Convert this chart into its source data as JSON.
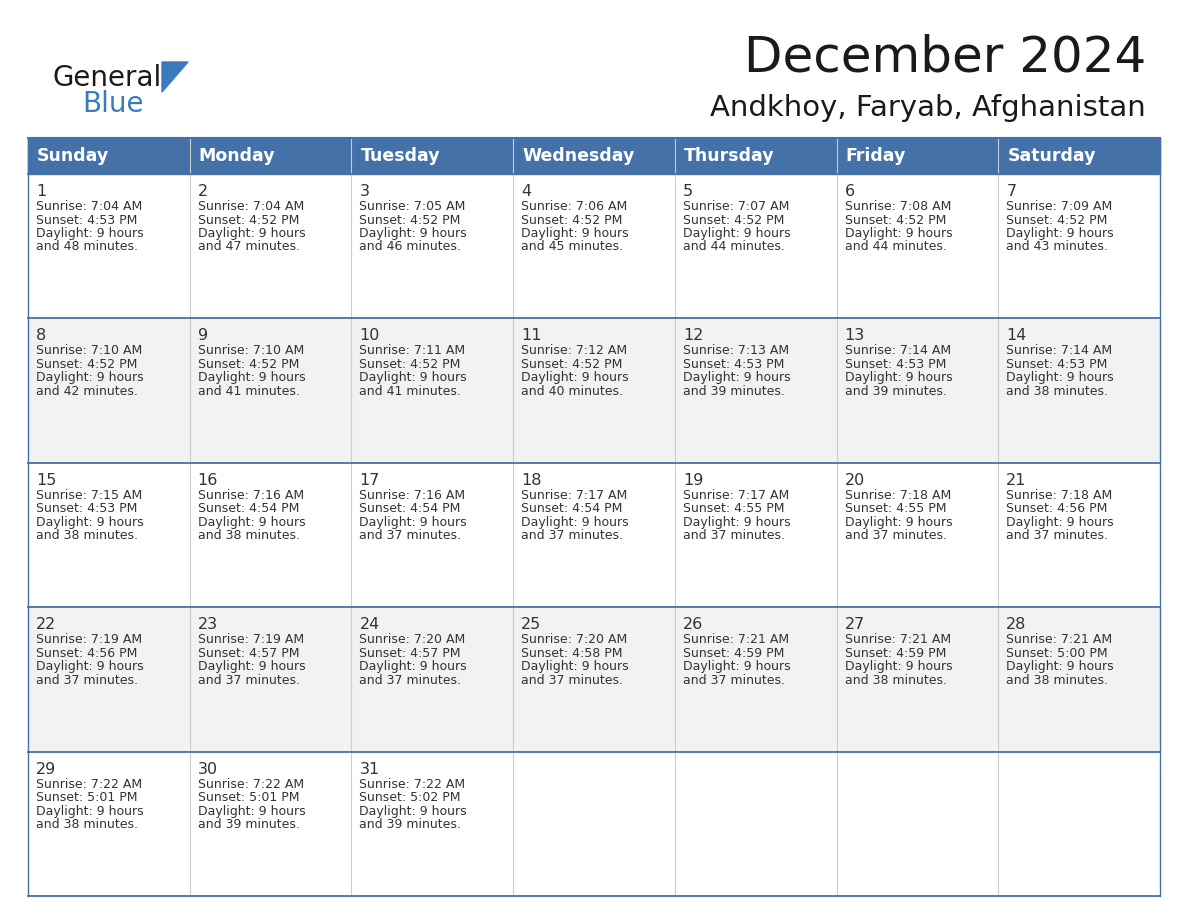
{
  "title": "December 2024",
  "subtitle": "Andkhoy, Faryab, Afghanistan",
  "header_color": "#4472a8",
  "header_text_color": "#ffffff",
  "border_color": "#4472a8",
  "row_separator_color": "#4472a8",
  "col_separator_color": "#cccccc",
  "cell_bg_even": "#ffffff",
  "cell_bg_odd": "#f2f2f2",
  "last_row_bg": "#f2f2f2",
  "text_color": "#333333",
  "days_of_week": [
    "Sunday",
    "Monday",
    "Tuesday",
    "Wednesday",
    "Thursday",
    "Friday",
    "Saturday"
  ],
  "calendar_data": [
    [
      {
        "day": 1,
        "sunrise": "7:04 AM",
        "sunset": "4:53 PM",
        "daylight_h": "9 hours",
        "daylight_m": "and 48 minutes."
      },
      {
        "day": 2,
        "sunrise": "7:04 AM",
        "sunset": "4:52 PM",
        "daylight_h": "9 hours",
        "daylight_m": "and 47 minutes."
      },
      {
        "day": 3,
        "sunrise": "7:05 AM",
        "sunset": "4:52 PM",
        "daylight_h": "9 hours",
        "daylight_m": "and 46 minutes."
      },
      {
        "day": 4,
        "sunrise": "7:06 AM",
        "sunset": "4:52 PM",
        "daylight_h": "9 hours",
        "daylight_m": "and 45 minutes."
      },
      {
        "day": 5,
        "sunrise": "7:07 AM",
        "sunset": "4:52 PM",
        "daylight_h": "9 hours",
        "daylight_m": "and 44 minutes."
      },
      {
        "day": 6,
        "sunrise": "7:08 AM",
        "sunset": "4:52 PM",
        "daylight_h": "9 hours",
        "daylight_m": "and 44 minutes."
      },
      {
        "day": 7,
        "sunrise": "7:09 AM",
        "sunset": "4:52 PM",
        "daylight_h": "9 hours",
        "daylight_m": "and 43 minutes."
      }
    ],
    [
      {
        "day": 8,
        "sunrise": "7:10 AM",
        "sunset": "4:52 PM",
        "daylight_h": "9 hours",
        "daylight_m": "and 42 minutes."
      },
      {
        "day": 9,
        "sunrise": "7:10 AM",
        "sunset": "4:52 PM",
        "daylight_h": "9 hours",
        "daylight_m": "and 41 minutes."
      },
      {
        "day": 10,
        "sunrise": "7:11 AM",
        "sunset": "4:52 PM",
        "daylight_h": "9 hours",
        "daylight_m": "and 41 minutes."
      },
      {
        "day": 11,
        "sunrise": "7:12 AM",
        "sunset": "4:52 PM",
        "daylight_h": "9 hours",
        "daylight_m": "and 40 minutes."
      },
      {
        "day": 12,
        "sunrise": "7:13 AM",
        "sunset": "4:53 PM",
        "daylight_h": "9 hours",
        "daylight_m": "and 39 minutes."
      },
      {
        "day": 13,
        "sunrise": "7:14 AM",
        "sunset": "4:53 PM",
        "daylight_h": "9 hours",
        "daylight_m": "and 39 minutes."
      },
      {
        "day": 14,
        "sunrise": "7:14 AM",
        "sunset": "4:53 PM",
        "daylight_h": "9 hours",
        "daylight_m": "and 38 minutes."
      }
    ],
    [
      {
        "day": 15,
        "sunrise": "7:15 AM",
        "sunset": "4:53 PM",
        "daylight_h": "9 hours",
        "daylight_m": "and 38 minutes."
      },
      {
        "day": 16,
        "sunrise": "7:16 AM",
        "sunset": "4:54 PM",
        "daylight_h": "9 hours",
        "daylight_m": "and 38 minutes."
      },
      {
        "day": 17,
        "sunrise": "7:16 AM",
        "sunset": "4:54 PM",
        "daylight_h": "9 hours",
        "daylight_m": "and 37 minutes."
      },
      {
        "day": 18,
        "sunrise": "7:17 AM",
        "sunset": "4:54 PM",
        "daylight_h": "9 hours",
        "daylight_m": "and 37 minutes."
      },
      {
        "day": 19,
        "sunrise": "7:17 AM",
        "sunset": "4:55 PM",
        "daylight_h": "9 hours",
        "daylight_m": "and 37 minutes."
      },
      {
        "day": 20,
        "sunrise": "7:18 AM",
        "sunset": "4:55 PM",
        "daylight_h": "9 hours",
        "daylight_m": "and 37 minutes."
      },
      {
        "day": 21,
        "sunrise": "7:18 AM",
        "sunset": "4:56 PM",
        "daylight_h": "9 hours",
        "daylight_m": "and 37 minutes."
      }
    ],
    [
      {
        "day": 22,
        "sunrise": "7:19 AM",
        "sunset": "4:56 PM",
        "daylight_h": "9 hours",
        "daylight_m": "and 37 minutes."
      },
      {
        "day": 23,
        "sunrise": "7:19 AM",
        "sunset": "4:57 PM",
        "daylight_h": "9 hours",
        "daylight_m": "and 37 minutes."
      },
      {
        "day": 24,
        "sunrise": "7:20 AM",
        "sunset": "4:57 PM",
        "daylight_h": "9 hours",
        "daylight_m": "and 37 minutes."
      },
      {
        "day": 25,
        "sunrise": "7:20 AM",
        "sunset": "4:58 PM",
        "daylight_h": "9 hours",
        "daylight_m": "and 37 minutes."
      },
      {
        "day": 26,
        "sunrise": "7:21 AM",
        "sunset": "4:59 PM",
        "daylight_h": "9 hours",
        "daylight_m": "and 37 minutes."
      },
      {
        "day": 27,
        "sunrise": "7:21 AM",
        "sunset": "4:59 PM",
        "daylight_h": "9 hours",
        "daylight_m": "and 38 minutes."
      },
      {
        "day": 28,
        "sunrise": "7:21 AM",
        "sunset": "5:00 PM",
        "daylight_h": "9 hours",
        "daylight_m": "and 38 minutes."
      }
    ],
    [
      {
        "day": 29,
        "sunrise": "7:22 AM",
        "sunset": "5:01 PM",
        "daylight_h": "9 hours",
        "daylight_m": "and 38 minutes."
      },
      {
        "day": 30,
        "sunrise": "7:22 AM",
        "sunset": "5:01 PM",
        "daylight_h": "9 hours",
        "daylight_m": "and 39 minutes."
      },
      {
        "day": 31,
        "sunrise": "7:22 AM",
        "sunset": "5:02 PM",
        "daylight_h": "9 hours",
        "daylight_m": "and 39 minutes."
      },
      null,
      null,
      null,
      null
    ]
  ],
  "logo_general_color": "#1a1a1a",
  "logo_blue_color": "#3a7abf",
  "logo_triangle_color": "#3a7abf",
  "title_color": "#1a1a1a",
  "subtitle_color": "#1a1a1a",
  "fig_width": 11.88,
  "fig_height": 9.18,
  "dpi": 100
}
